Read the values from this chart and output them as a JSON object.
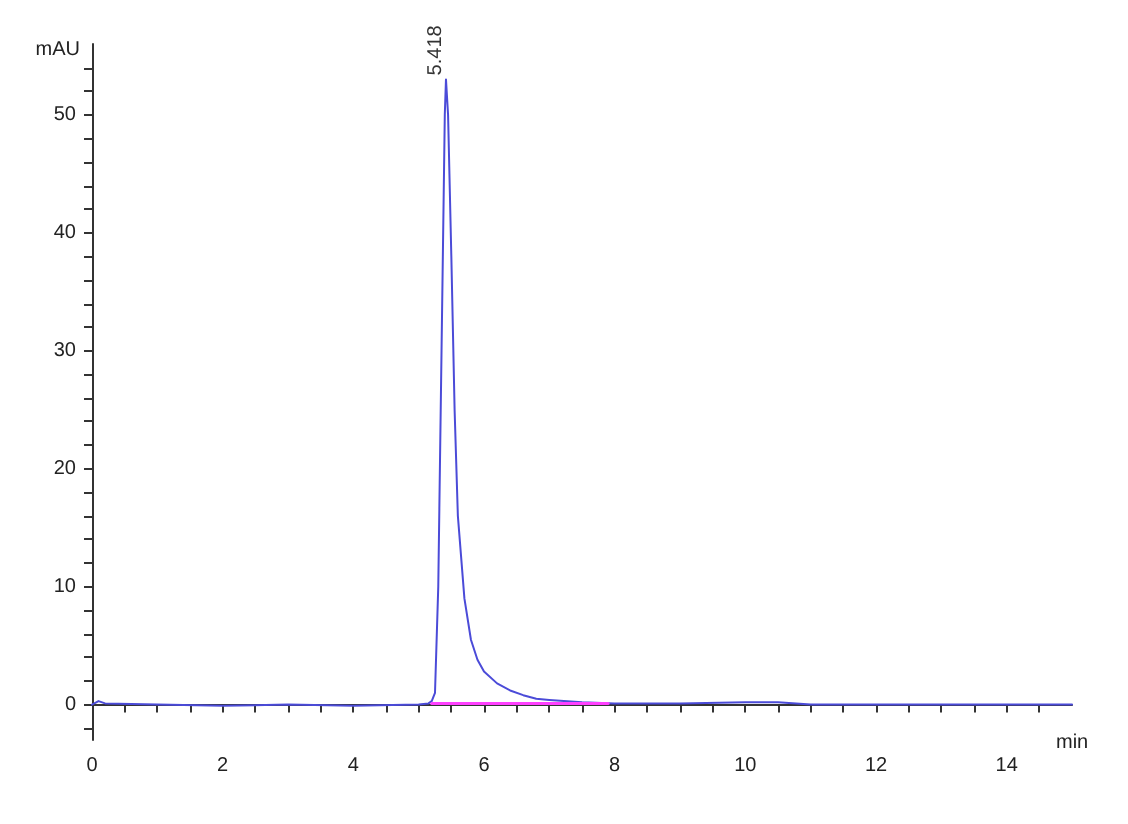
{
  "chart_data": {
    "type": "line",
    "xlabel": "min",
    "ylabel": "mAU",
    "xlim": [
      0,
      15
    ],
    "ylim": [
      -3,
      56
    ],
    "xticks": [
      0,
      {
        "value": 0.5,
        "label": null
      },
      {
        "value": 1,
        "label": null
      },
      {
        "value": 1.5,
        "label": null
      },
      2,
      {
        "value": 2.5,
        "label": null
      },
      {
        "value": 3,
        "label": null
      },
      {
        "value": 3.5,
        "label": null
      },
      4,
      {
        "value": 4.5,
        "label": null
      },
      {
        "value": 5,
        "label": null
      },
      {
        "value": 5.5,
        "label": null
      },
      6,
      {
        "value": 6.5,
        "label": null
      },
      {
        "value": 7,
        "label": null
      },
      {
        "value": 7.5,
        "label": null
      },
      8,
      {
        "value": 8.5,
        "label": null
      },
      {
        "value": 9,
        "label": null
      },
      {
        "value": 9.5,
        "label": null
      },
      10,
      {
        "value": 10.5,
        "label": null
      },
      {
        "value": 11,
        "label": null
      },
      {
        "value": 11.5,
        "label": null
      },
      12,
      {
        "value": 12.5,
        "label": null
      },
      {
        "value": 13,
        "label": null
      },
      {
        "value": 13.5,
        "label": null
      },
      14,
      {
        "value": 14.5,
        "label": null
      }
    ],
    "yticks": [
      {
        "value": -2,
        "label": null
      },
      0,
      {
        "value": 2,
        "label": null
      },
      {
        "value": 4,
        "label": null
      },
      {
        "value": 6,
        "label": null
      },
      {
        "value": 8,
        "label": null
      },
      10,
      {
        "value": 12,
        "label": null
      },
      {
        "value": 14,
        "label": null
      },
      {
        "value": 16,
        "label": null
      },
      {
        "value": 18,
        "label": null
      },
      20,
      {
        "value": 22,
        "label": null
      },
      {
        "value": 24,
        "label": null
      },
      {
        "value": 26,
        "label": null
      },
      {
        "value": 28,
        "label": null
      },
      30,
      {
        "value": 32,
        "label": null
      },
      {
        "value": 34,
        "label": null
      },
      {
        "value": 36,
        "label": null
      },
      {
        "value": 38,
        "label": null
      },
      40,
      {
        "value": 42,
        "label": null
      },
      {
        "value": 44,
        "label": null
      },
      {
        "value": 46,
        "label": null
      },
      {
        "value": 48,
        "label": null
      },
      50,
      {
        "value": 52,
        "label": null
      },
      {
        "value": 54,
        "label": null
      }
    ],
    "grid": false,
    "marker": "none",
    "line_style": "solid",
    "annotations": [
      {
        "text": "5.418",
        "x": 5.418,
        "y": 53
      }
    ],
    "series": [
      {
        "color": "#4b4bd8",
        "x": [
          0,
          0.1,
          0.2,
          1,
          2,
          3,
          4,
          5,
          5.15,
          5.2,
          5.25,
          5.3,
          5.35,
          5.4,
          5.418,
          5.45,
          5.5,
          5.55,
          5.6,
          5.7,
          5.8,
          5.9,
          6,
          6.2,
          6.4,
          6.6,
          6.8,
          7,
          7.5,
          8,
          9,
          10,
          10.5,
          11,
          12,
          13,
          14,
          15
        ],
        "values": [
          0,
          0.3,
          0.1,
          0,
          -0.1,
          0,
          -0.1,
          0,
          0.1,
          0.3,
          1,
          10,
          30,
          50,
          53,
          50,
          38,
          25,
          16,
          9,
          5.5,
          3.8,
          2.8,
          1.8,
          1.2,
          0.8,
          0.5,
          0.4,
          0.2,
          0.1,
          0.1,
          0.2,
          0.2,
          0,
          0,
          0,
          0,
          0
        ]
      },
      {
        "color": "#ff40ff",
        "x": [
          5.2,
          7.9
        ],
        "values": [
          0.1,
          0.1
        ]
      }
    ]
  }
}
